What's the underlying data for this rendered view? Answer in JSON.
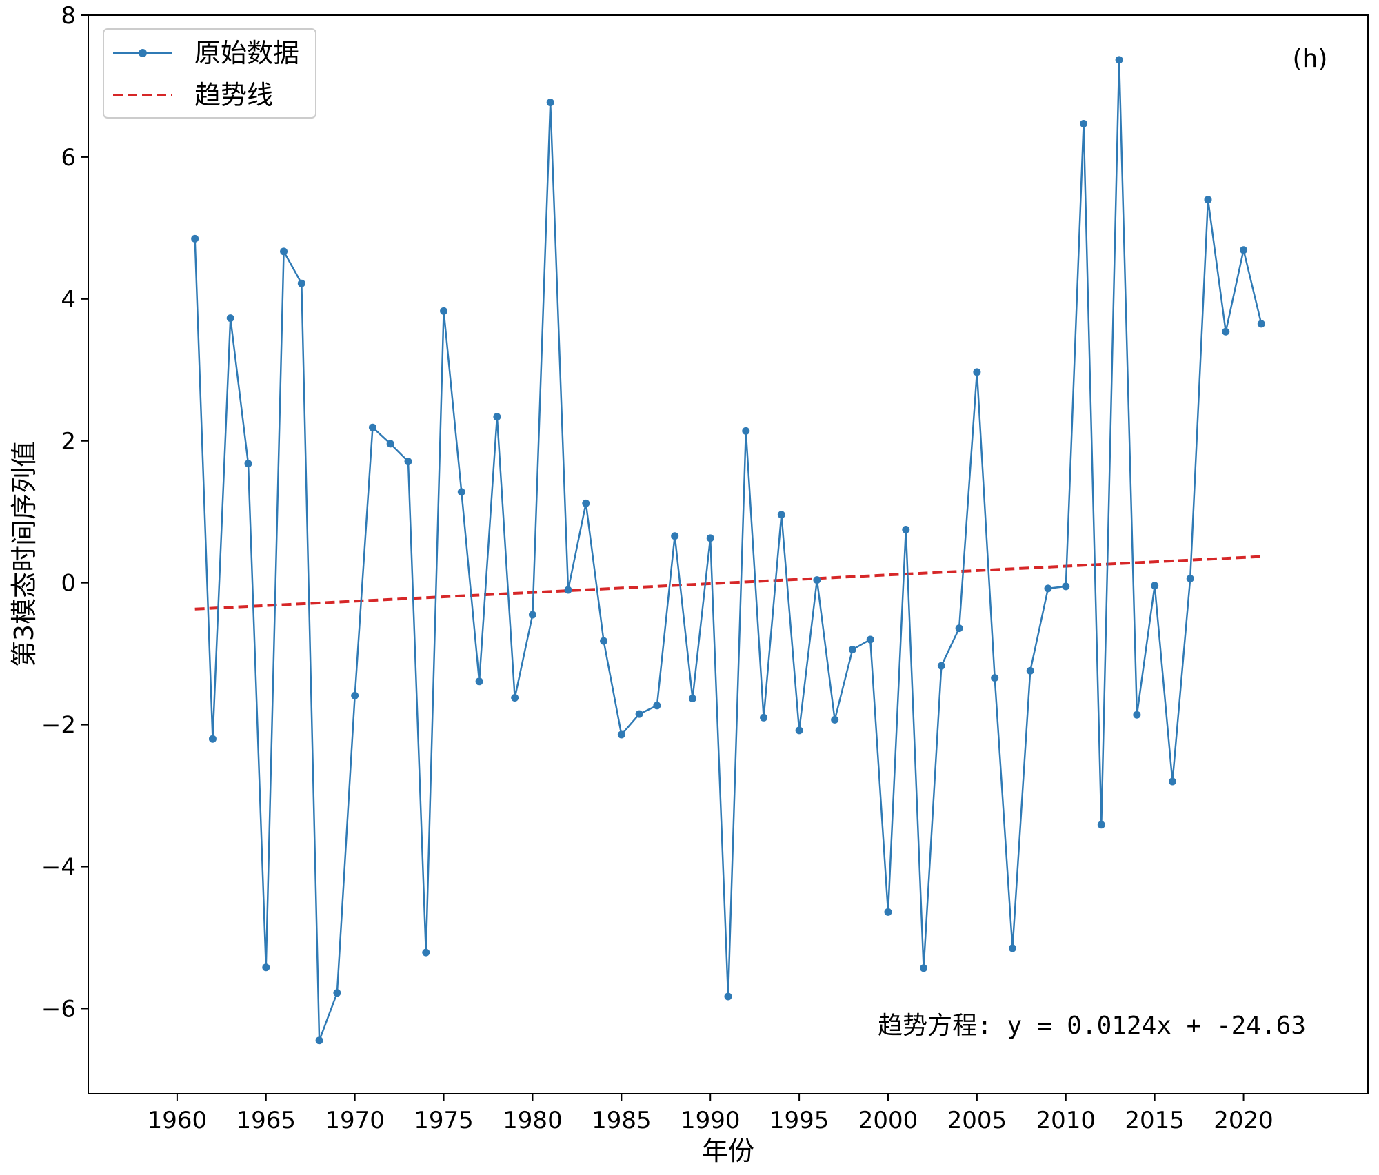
{
  "chart_data": {
    "type": "line",
    "xlabel": "年份",
    "ylabel": "第3模态时间序列值",
    "panel_label": "(h)",
    "xlim": [
      1955,
      2027
    ],
    "ylim": [
      -7.2,
      8.0
    ],
    "x_ticks": [
      1960,
      1965,
      1970,
      1975,
      1980,
      1985,
      1990,
      1995,
      2000,
      2005,
      2010,
      2015,
      2020
    ],
    "y_ticks": [
      -6,
      -4,
      -2,
      0,
      2,
      4,
      6,
      8
    ],
    "y_tick_labels": [
      "−6",
      "−4",
      "−2",
      "0",
      "2",
      "4",
      "6",
      "8"
    ],
    "legend": {
      "position": "upper-left",
      "entries": [
        "原始数据",
        "趋势线"
      ]
    },
    "annotation": "趋势方程: y = 0.0124x + -24.63",
    "series": [
      {
        "name": "原始数据",
        "style": "line-with-markers",
        "color": "#2f7ab5",
        "x": [
          1961,
          1962,
          1963,
          1964,
          1965,
          1966,
          1967,
          1968,
          1969,
          1970,
          1971,
          1972,
          1973,
          1974,
          1975,
          1976,
          1977,
          1978,
          1979,
          1980,
          1981,
          1982,
          1983,
          1984,
          1985,
          1986,
          1987,
          1988,
          1989,
          1990,
          1991,
          1992,
          1993,
          1994,
          1995,
          1996,
          1997,
          1998,
          1999,
          2000,
          2001,
          2002,
          2003,
          2004,
          2005,
          2006,
          2007,
          2008,
          2009,
          2010,
          2011,
          2012,
          2013,
          2014,
          2015,
          2016,
          2017,
          2018,
          2019,
          2020,
          2021
        ],
        "values": [
          4.85,
          -2.2,
          3.73,
          1.68,
          -5.42,
          4.67,
          4.22,
          -6.45,
          -5.78,
          -1.59,
          2.19,
          1.96,
          1.71,
          -5.21,
          3.83,
          1.28,
          -1.39,
          2.34,
          -1.62,
          -0.45,
          6.77,
          -0.1,
          1.12,
          -0.82,
          -2.14,
          -1.85,
          -1.73,
          0.66,
          -1.63,
          0.63,
          -5.83,
          2.14,
          -1.9,
          0.96,
          -2.08,
          0.04,
          -1.93,
          -0.94,
          -0.8,
          -4.64,
          0.75,
          -5.43,
          -1.17,
          -0.64,
          2.97,
          -1.34,
          -5.15,
          -1.24,
          -0.08,
          -0.05,
          6.47,
          -3.41,
          7.37,
          -1.86,
          -0.04,
          -2.8,
          0.06,
          5.4,
          3.54,
          4.69,
          3.65
        ]
      },
      {
        "name": "趋势线",
        "style": "dashed",
        "color": "#d62728",
        "x": [
          1961,
          2021
        ],
        "values": [
          -0.37,
          0.37
        ]
      }
    ]
  }
}
